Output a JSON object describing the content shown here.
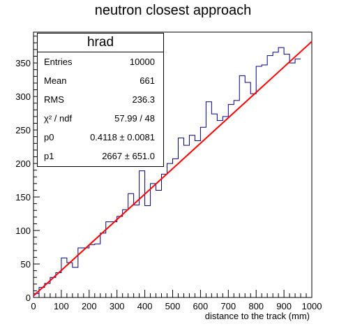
{
  "title": "neutron closest approach",
  "chart_data": {
    "type": "histogram",
    "title": "neutron closest approach",
    "xlabel": "distance to the track (mm)",
    "ylabel": "",
    "xlim": [
      0,
      1000
    ],
    "ylim": [
      0,
      396
    ],
    "x_ticks": [
      "0",
      "100",
      "200",
      "300",
      "400",
      "500",
      "600",
      "700",
      "800",
      "900",
      "1000"
    ],
    "y_ticks": [
      "0",
      "50",
      "100",
      "150",
      "200",
      "250",
      "300",
      "350"
    ],
    "bin_width": 20,
    "bin_edges_start": 0,
    "values": [
      6,
      15,
      21,
      30,
      37,
      59,
      52,
      45,
      74,
      74,
      79,
      80,
      96,
      113,
      113,
      121,
      131,
      155,
      138,
      189,
      137,
      170,
      160,
      184,
      200,
      207,
      238,
      227,
      242,
      234,
      254,
      292,
      274,
      264,
      270,
      288,
      294,
      331,
      321,
      304,
      345,
      347,
      361,
      366,
      373,
      363,
      350,
      356
    ],
    "fit": {
      "type": "linear",
      "p0": 0.4118,
      "p1": 2667,
      "x_start": 0,
      "x_end": 1000,
      "y_start": 2.5,
      "y_end": 382
    },
    "series": [
      {
        "name": "hrad",
        "color": "#000080"
      },
      {
        "name": "",
        "color": "#ff0000"
      }
    ],
    "grid": false,
    "legend_position": "top-left"
  },
  "stats": {
    "name": "hrad",
    "rows": [
      {
        "key": "Entries",
        "value": "10000"
      },
      {
        "key": "Mean",
        "value": "661"
      },
      {
        "key": "RMS",
        "value": "236.3"
      },
      {
        "key": "χ² / ndf",
        "value": "57.99 / 48"
      },
      {
        "key": "p0",
        "value": "0.4118  ± 0.0081"
      },
      {
        "key": "p1",
        "value": "2667  ± 651.0"
      }
    ]
  }
}
